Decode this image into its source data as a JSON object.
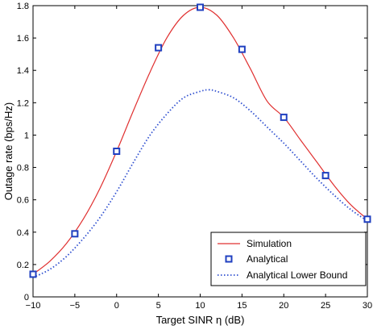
{
  "chart_data": {
    "type": "line",
    "xlabel": "Target SINR η (dB)",
    "ylabel": "Outage rate (bps/Hz)",
    "xlim": [
      -10,
      30
    ],
    "ylim": [
      0,
      1.8
    ],
    "xticks": [
      "−10",
      "−5",
      "0",
      "5",
      "10",
      "15",
      "20",
      "25",
      "30"
    ],
    "yticks": [
      "0",
      "0.2",
      "0.4",
      "0.6",
      "0.8",
      "1",
      "1.2",
      "1.4",
      "1.6",
      "1.8"
    ],
    "xtick_values": [
      -10,
      -5,
      0,
      5,
      10,
      15,
      20,
      25,
      30
    ],
    "ytick_values": [
      0,
      0.2,
      0.4,
      0.6,
      0.8,
      1.0,
      1.2,
      1.4,
      1.6,
      1.8
    ],
    "grid": false,
    "legend_position": "bottom-right",
    "series": [
      {
        "name": "Simulation",
        "style": "solid-line",
        "color": "#e03030",
        "x": [
          -10,
          -8,
          -6,
          -4,
          -2,
          0,
          2,
          4,
          6,
          8,
          10,
          12,
          14,
          16,
          18,
          20,
          22,
          24,
          26,
          28,
          30
        ],
        "y": [
          0.14,
          0.22,
          0.33,
          0.48,
          0.67,
          0.9,
          1.15,
          1.39,
          1.6,
          1.74,
          1.79,
          1.74,
          1.6,
          1.41,
          1.21,
          1.11,
          0.97,
          0.83,
          0.69,
          0.57,
          0.48
        ]
      },
      {
        "name": "Analytical",
        "style": "square-markers",
        "color": "#2040c0",
        "x": [
          -10,
          -5,
          0,
          5,
          10,
          15,
          20,
          25,
          30
        ],
        "y": [
          0.14,
          0.39,
          0.9,
          1.54,
          1.79,
          1.53,
          1.11,
          0.75,
          0.48
        ]
      },
      {
        "name": "Analytical Lower Bound",
        "style": "dotted-line",
        "color": "#3050d0",
        "x": [
          -10,
          -8,
          -6,
          -4,
          -2,
          0,
          2,
          4,
          6,
          8,
          10,
          11,
          12,
          14,
          16,
          18,
          20,
          22,
          24,
          26,
          28,
          30
        ],
        "y": [
          0.12,
          0.17,
          0.25,
          0.36,
          0.49,
          0.65,
          0.83,
          1.0,
          1.13,
          1.23,
          1.27,
          1.28,
          1.27,
          1.23,
          1.15,
          1.05,
          0.95,
          0.84,
          0.73,
          0.63,
          0.54,
          0.47
        ]
      }
    ]
  }
}
